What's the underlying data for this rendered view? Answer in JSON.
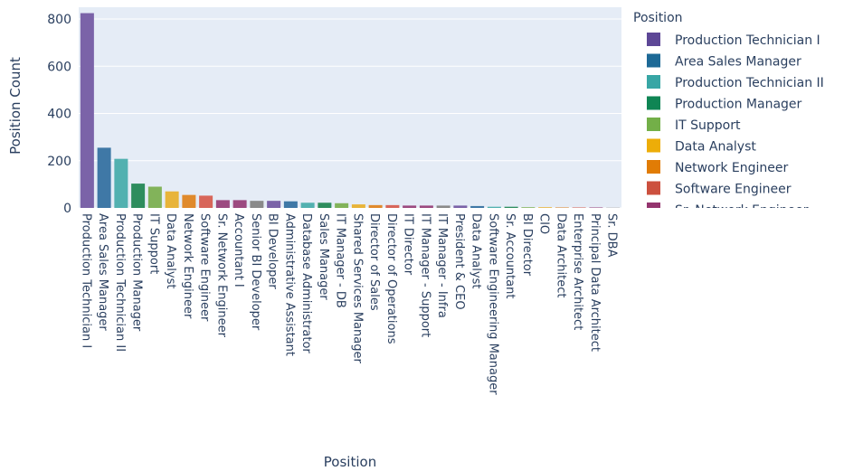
{
  "chart_data": {
    "type": "bar",
    "xlabel": "Position",
    "ylabel": "Position Count",
    "ylim": [
      0,
      850
    ],
    "yticks": [
      0,
      200,
      400,
      600,
      800
    ],
    "grid": true,
    "legend_title": "Position",
    "legend_placement": "right",
    "categories": [
      "Production Technician I",
      "Area Sales Manager",
      "Production Technician II",
      "Production Manager",
      "IT Support",
      "Data Analyst",
      "Network Engineer",
      "Software Engineer",
      "Sr. Network Engineer",
      "Accountant I",
      "Senior BI Developer",
      "BI Developer",
      "Administrative Assistant",
      "Database Administrator",
      "Sales Manager",
      "IT Manager - DB",
      "Shared Services Manager",
      "Director of Sales",
      "Director of Operations",
      "IT Director",
      "IT Manager - Support",
      "IT Manager - Infra",
      "President & CEO",
      "Data Analyst",
      "Software Engineering Manager",
      "Sr. Accountant",
      "BI Director",
      "CIO",
      "Data Architect",
      "Enterprise Architect",
      "Principal Data Architect",
      "Sr. DBA"
    ],
    "values": [
      825,
      255,
      208,
      103,
      90,
      70,
      55,
      52,
      33,
      33,
      30,
      30,
      28,
      22,
      22,
      20,
      15,
      12,
      12,
      10,
      10,
      10,
      10,
      8,
      5,
      5,
      3,
      3,
      2,
      2,
      2,
      1
    ],
    "colors": [
      "#7b63a8",
      "#3f78a6",
      "#52b1b0",
      "#2e8d5e",
      "#82b35a",
      "#e8b43a",
      "#e08a2c",
      "#d8665a",
      "#9c4a80",
      "#9c4a80",
      "#8a8a8a",
      "#7b63a8",
      "#3f78a6",
      "#52b1b0",
      "#2e8d5e",
      "#82b35a",
      "#e8b43a",
      "#e08a2c",
      "#d8665a",
      "#9c4a80",
      "#9c4a80",
      "#8a8a8a",
      "#7b63a8",
      "#3f78a6",
      "#52b1b0",
      "#2e8d5e",
      "#82b35a",
      "#e8b43a",
      "#e08a2c",
      "#d8665a",
      "#9c4a80",
      "#8a8a8a"
    ],
    "legend": [
      {
        "label": "Production Technician I",
        "color": "#5d4796"
      },
      {
        "label": "Area Sales Manager",
        "color": "#1d6996"
      },
      {
        "label": "Production Technician II",
        "color": "#38a6a5"
      },
      {
        "label": "Production Manager",
        "color": "#0f8554"
      },
      {
        "label": "IT Support",
        "color": "#73af48"
      },
      {
        "label": "Data Analyst",
        "color": "#edad08"
      },
      {
        "label": "Network Engineer",
        "color": "#e17c05"
      },
      {
        "label": "Software Engineer",
        "color": "#cc503e"
      },
      {
        "label": "Sr. Network Engineer",
        "color": "#94346e"
      }
    ]
  }
}
